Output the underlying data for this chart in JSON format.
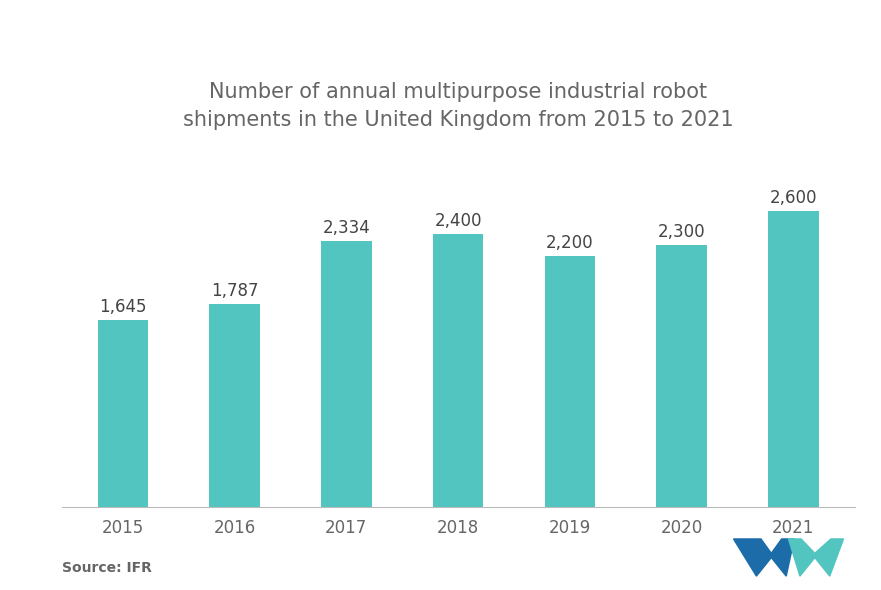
{
  "title": "Number of annual multipurpose industrial robot\nshipments in the United Kingdom from 2015 to 2021",
  "categories": [
    "2015",
    "2016",
    "2017",
    "2018",
    "2019",
    "2020",
    "2021"
  ],
  "values": [
    1645,
    1787,
    2334,
    2400,
    2200,
    2300,
    2600
  ],
  "labels": [
    "1,645",
    "1,787",
    "2,334",
    "2,400",
    "2,200",
    "2,300",
    "2,600"
  ],
  "bar_color": "#52C5C0",
  "background_color": "#ffffff",
  "title_color": "#666666",
  "label_color": "#444444",
  "tick_color": "#666666",
  "source_text": "Source: IFR",
  "ylim": [
    0,
    3000
  ],
  "title_fontsize": 15,
  "label_fontsize": 12,
  "tick_fontsize": 12,
  "source_fontsize": 10,
  "bar_width": 0.45
}
